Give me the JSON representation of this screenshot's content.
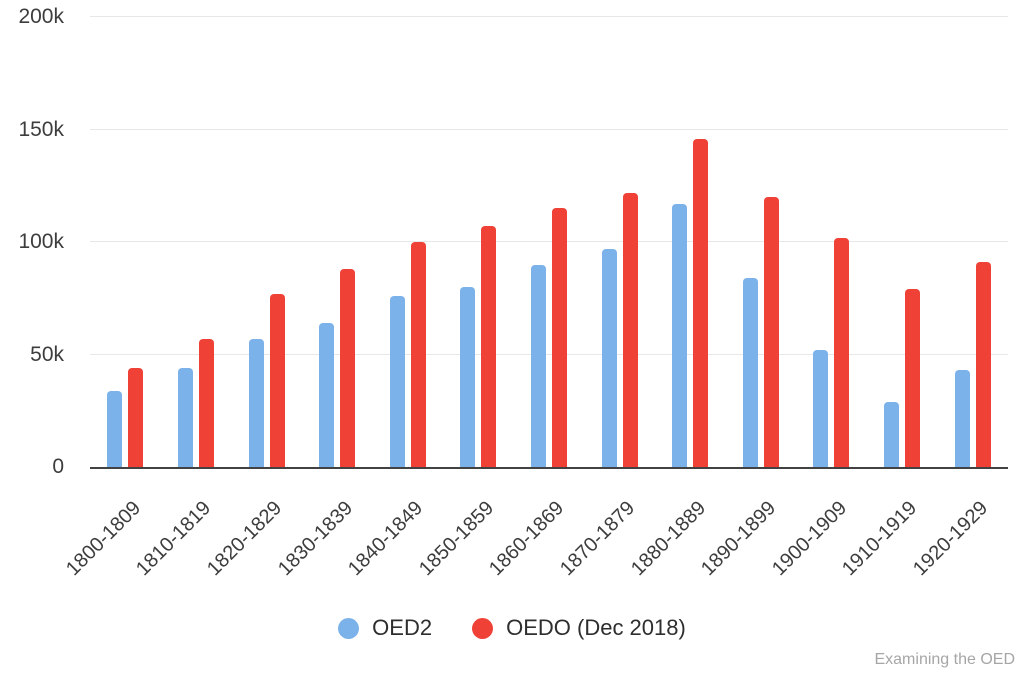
{
  "watermark": "Examining the OED",
  "colors": {
    "background": "#ffffff",
    "grid": "#e7e7e7",
    "axis": "#424242",
    "tick_label": "#3d3d3d",
    "legend_label": "#2e2e2e",
    "watermark": "#a6a6a6"
  },
  "chart_data": {
    "type": "bar",
    "title": "",
    "xlabel": "",
    "ylabel": "",
    "grid": true,
    "legend_position": "bottom",
    "ylim": [
      0,
      200000
    ],
    "yticks": [
      {
        "label": "0",
        "value": 0
      },
      {
        "label": "50k",
        "value": 50000
      },
      {
        "label": "100k",
        "value": 100000
      },
      {
        "label": "150k",
        "value": 150000
      },
      {
        "label": "200k",
        "value": 200000
      }
    ],
    "categories": [
      "1800-1809",
      "1810-1819",
      "1820-1829",
      "1830-1839",
      "1840-1849",
      "1850-1859",
      "1860-1869",
      "1870-1879",
      "1880-1889",
      "1890-1899",
      "1900-1909",
      "1910-1919",
      "1920-1929"
    ],
    "series": [
      {
        "name": "OED2",
        "color": "#7cb2ea",
        "values": [
          34000,
          44000,
          57000,
          64000,
          76000,
          80000,
          90000,
          97000,
          117000,
          84000,
          52000,
          29000,
          43000
        ]
      },
      {
        "name": "OEDO (Dec 2018)",
        "color": "#f04137",
        "values": [
          44000,
          57000,
          77000,
          88000,
          100000,
          107000,
          115000,
          122000,
          146000,
          120000,
          102000,
          79000,
          91000
        ]
      }
    ]
  }
}
